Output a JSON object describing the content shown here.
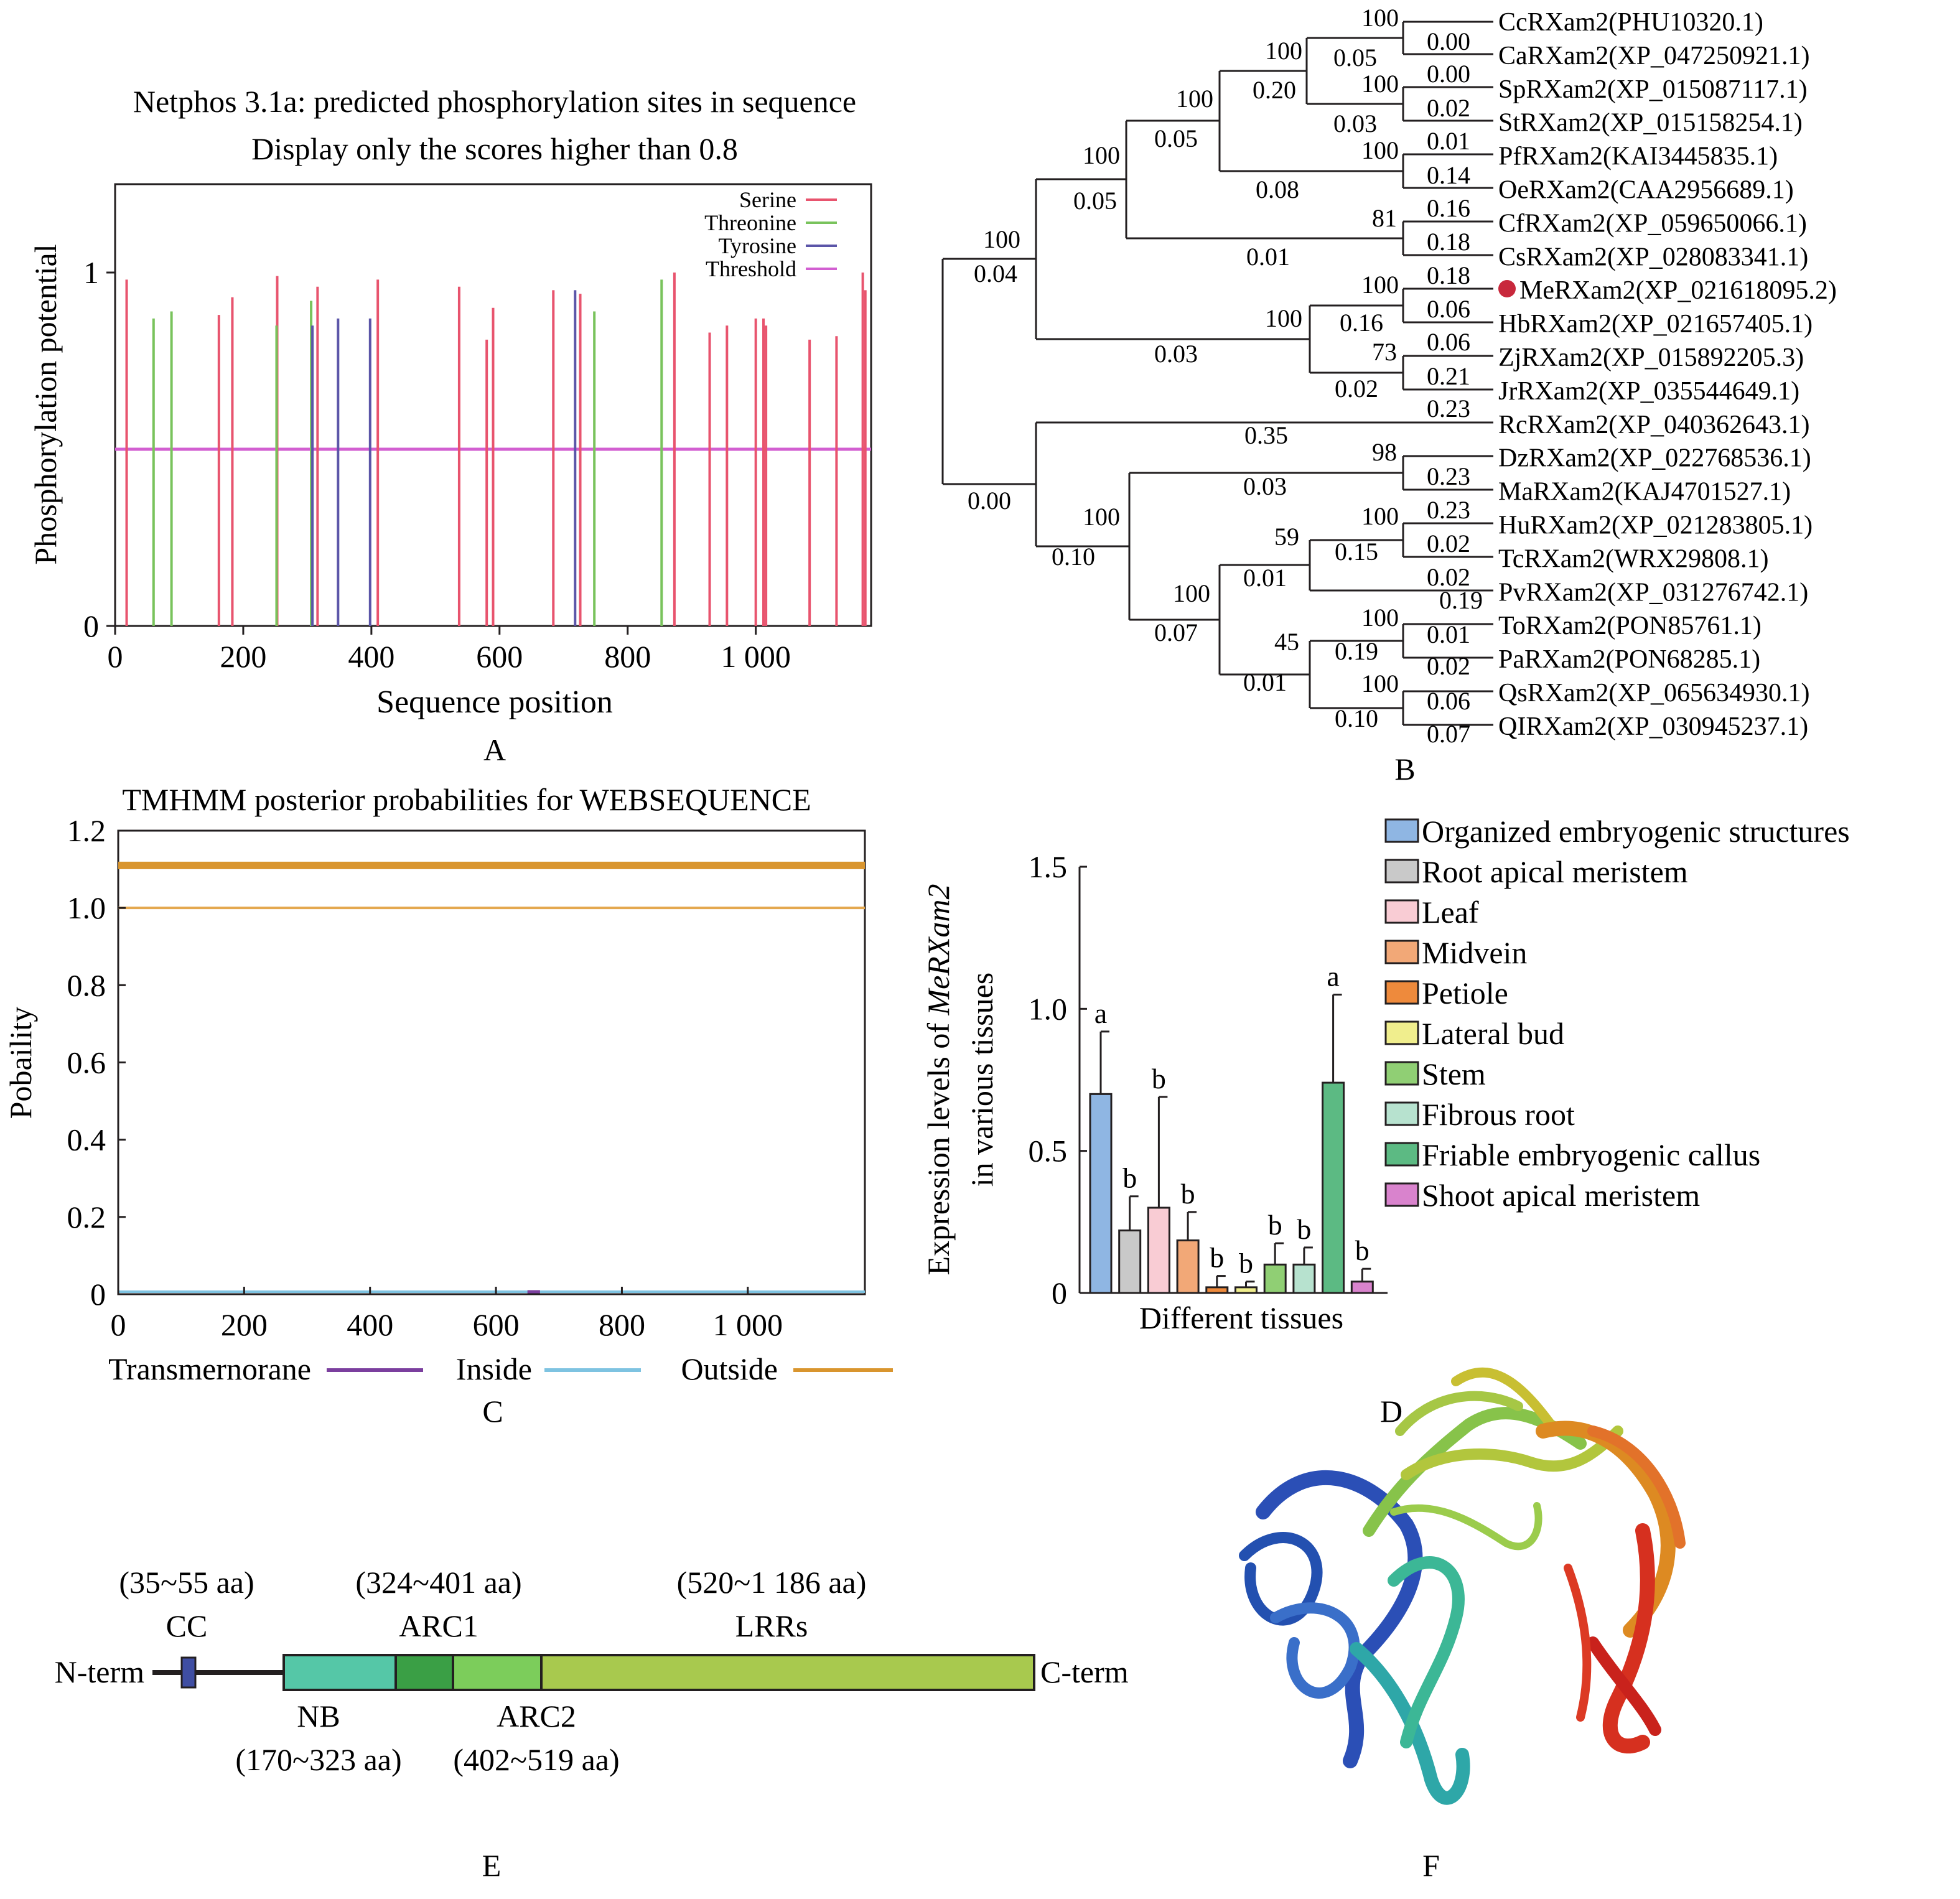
{
  "chart_data": [
    {
      "panel": "A",
      "type": "bar",
      "panel_label": "A",
      "title": "Netphos 3.1a: predicted phosphorylation sites in sequence",
      "subtitle": "Display only the scores higher than 0.8",
      "xlabel": "Sequence position",
      "ylabel": "Phosphorylation potential",
      "xlim": [
        0,
        1180
      ],
      "ylim": [
        0,
        1.25
      ],
      "xticks": [
        "0",
        "200",
        "400",
        "600",
        "800",
        "1 000"
      ],
      "xtick_values": [
        0,
        200,
        400,
        600,
        800,
        1000
      ],
      "yticks": [
        "0",
        "1"
      ],
      "ytick_values": [
        0,
        1
      ],
      "legend": {
        "position": "top-right",
        "entries": [
          "Serine",
          "Threonine",
          "Tyrosine",
          "Threshold"
        ]
      },
      "threshold": 0.5,
      "series": [
        {
          "name": "Serine",
          "color": "#e8546e",
          "x": [
            18,
            162,
            183,
            253,
            316,
            410,
            537,
            580,
            590,
            684,
            726,
            873,
            928,
            955,
            1000,
            1012,
            1016,
            1084,
            1126,
            1167,
            1171
          ],
          "values": [
            0.98,
            0.88,
            0.93,
            0.99,
            0.96,
            0.98,
            0.96,
            0.81,
            0.9,
            0.95,
            0.94,
            1.0,
            0.83,
            0.85,
            0.87,
            0.87,
            0.85,
            0.81,
            0.82,
            1.0,
            0.95
          ]
        },
        {
          "name": "Threonine",
          "color": "#79c35c",
          "x": [
            60,
            88,
            252,
            306,
            748,
            853
          ],
          "values": [
            0.87,
            0.89,
            0.85,
            0.92,
            0.89,
            0.98
          ]
        },
        {
          "name": "Tyrosine",
          "color": "#5b55a8",
          "x": [
            308,
            348,
            398,
            718
          ],
          "values": [
            0.85,
            0.87,
            0.87,
            0.95
          ]
        },
        {
          "name": "Threshold",
          "color": "#d25fd1",
          "x": [
            0,
            1180
          ],
          "values": [
            0.5,
            0.5
          ]
        }
      ]
    },
    {
      "panel": "C",
      "type": "line",
      "panel_label": "C",
      "title": "TMHMM posterior probabilities for WEBSEQUENCE",
      "xlabel": "",
      "ylabel": "Pobaility",
      "xlim": [
        0,
        1186
      ],
      "ylim": [
        0,
        1.2
      ],
      "xticks": [
        "0",
        "200",
        "400",
        "600",
        "800",
        "1 000"
      ],
      "xtick_values": [
        0,
        200,
        400,
        600,
        800,
        1000
      ],
      "yticks": [
        "0",
        "0.2",
        "0.4",
        "0.6",
        "0.8",
        "1.0",
        "1.2"
      ],
      "ytick_values": [
        0,
        0.2,
        0.4,
        0.6,
        0.8,
        1.0,
        1.2
      ],
      "legend": {
        "position": "bottom",
        "entries": [
          {
            "name": "Transmernorane",
            "color": "#7b3f9e"
          },
          {
            "name": "Inside",
            "color": "#7ec3e1"
          },
          {
            "name": "Outside",
            "color": "#d9952e"
          }
        ]
      },
      "series": [
        {
          "name": "Outside",
          "color": "#d9952e",
          "x": [
            0,
            1186
          ],
          "values": [
            1.11,
            1.11
          ]
        },
        {
          "name": "Outside",
          "color": "#e4a84f",
          "x": [
            0,
            1186
          ],
          "values": [
            1.0,
            1.0
          ]
        },
        {
          "name": "Inside",
          "color": "#7ec3e1",
          "x": [
            0,
            1186
          ],
          "values": [
            0.0,
            0.0
          ]
        },
        {
          "name": "Transmernorane",
          "color": "#7b3f9e",
          "x": [
            650,
            670
          ],
          "values": [
            0.0,
            0.0
          ]
        }
      ]
    },
    {
      "panel": "D",
      "type": "bar",
      "panel_label": "D",
      "xlabel": "Different tissues",
      "ylabel_line1_prefix": "Expression levels of ",
      "ylabel_line1_italic": "MeRXam2",
      "ylabel_line2": "in various tissues",
      "ylim": [
        0,
        1.5
      ],
      "yticks": [
        "0",
        "0.5",
        "1.0",
        "1.5"
      ],
      "ytick_values": [
        0,
        0.5,
        1.0,
        1.5
      ],
      "legend": {
        "position": "top-right"
      },
      "categories": [
        "Organized embryogenic structures",
        "Root apical meristem",
        "Leaf",
        "Midvein",
        "Petiole",
        "Lateral bud",
        "Stem",
        "Fibrous root",
        "Friable embryogenic callus",
        "Shoot apical meristem"
      ],
      "values": [
        0.7,
        0.22,
        0.3,
        0.185,
        0.02,
        0.02,
        0.1,
        0.1,
        0.74,
        0.04
      ],
      "errors": [
        0.22,
        0.12,
        0.39,
        0.1,
        0.04,
        0.02,
        0.075,
        0.06,
        0.31,
        0.045
      ],
      "significance": [
        "a",
        "b",
        "b",
        "b",
        "b",
        "b",
        "b",
        "b",
        "a",
        "b"
      ],
      "colors": [
        "#8fb6e3",
        "#c9c9c9",
        "#f9ccd4",
        "#f2a877",
        "#ee8a3c",
        "#f0ee8d",
        "#90cf74",
        "#b7e2cf",
        "#5cba83",
        "#d983cd"
      ]
    }
  ],
  "tree": {
    "panel_label": "B",
    "marked_color": "#c8283c",
    "marked_leaf": 8,
    "leaves": [
      "CcRXam2(PHU10320.1)",
      "CaRXam2(XP_047250921.1)",
      "SpRXam2(XP_015087117.1)",
      "StRXam2(XP_015158254.1)",
      "PfRXam2(KAI3445835.1)",
      "OeRXam2(CAA2956689.1)",
      "CfRXam2(XP_059650066.1)",
      "CsRXam2(XP_028083341.1)",
      "MeRXam2(XP_021618095.2)",
      "HbRXam2(XP_021657405.1)",
      "ZjRXam2(XP_015892205.3)",
      "JrRXam2(XP_035544649.1)",
      "RcRXam2(XP_040362643.1)",
      "DzRXam2(XP_022768536.1)",
      "MaRXam2(KAJ4701527.1)",
      "HuRXam2(XP_021283805.1)",
      "TcRXam2(WRX29808.1)",
      "PvRXam2(XP_031276742.1)",
      "ToRXam2(PON85761.1)",
      "PaRXam2(PON68285.1)",
      "QsRXam2(XP_065634930.1)",
      "QIRXam2(XP_030945237.1)"
    ],
    "labels": [
      "100",
      "0.00",
      "0.05",
      "0.00",
      "100",
      "0.20",
      "100",
      "0.02",
      "0.03",
      "0.01",
      "100",
      "0.05",
      "100",
      "0.14",
      "0.08",
      "0.16",
      "100",
      "0.05",
      "81",
      "0.18",
      "0.01",
      "100",
      "0.04",
      "0.18",
      "100",
      "0.06",
      "100",
      "0.16",
      "0.06",
      "73",
      "0.21",
      "0.03",
      "0.02",
      "0.23",
      "0.35",
      "98",
      "0.03",
      "0.23",
      "0.00",
      "0.23",
      "100",
      "100",
      "0.02",
      "0.10",
      "59",
      "0.15",
      "0.02",
      "0.01",
      "100",
      "0.19",
      "100",
      "0.01",
      "0.07",
      "45",
      "0.19",
      "0.02",
      "0.01",
      "100",
      "0.06",
      "0.10",
      "0.07"
    ]
  },
  "domains": {
    "panel_label": "E",
    "n_term": "N-term",
    "c_term": "C-term",
    "top_labels": [
      {
        "range": "(35~55 aa)",
        "name": "CC"
      },
      {
        "range": "(324~401 aa)",
        "name": "ARC1"
      },
      {
        "range": "(520~1 186 aa)",
        "name": "LRRs"
      }
    ],
    "bottom_labels": [
      {
        "name": "NB",
        "range": "(170~323 aa)"
      },
      {
        "name": "ARC2",
        "range": "(402~519 aa)"
      }
    ],
    "colors": {
      "CC": "#3f4ea3",
      "NB": "#55c7a7",
      "ARC1": "#3a9f45",
      "ARC2": "#7ccd5b",
      "LRRs": "#a8c94e"
    }
  },
  "structure": {
    "panel_label": "F"
  }
}
